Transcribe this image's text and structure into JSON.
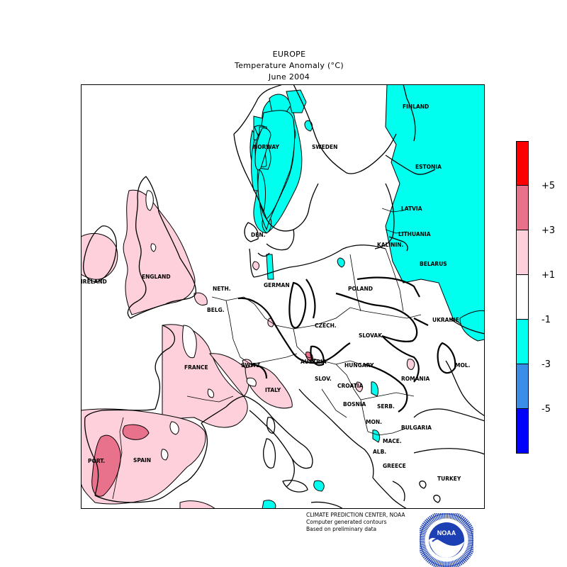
{
  "title": {
    "line1": "EUROPE",
    "line2": "Temperature Anomaly (°C)",
    "line3": "June 2004"
  },
  "countries": {
    "finland": "FINLAND",
    "norway": "NORWAY",
    "sweden": "SWEDEN",
    "estonia": "ESTONIA",
    "latvia": "LATVIA",
    "lithuania": "LITHUANIA",
    "kalinin": "KALININ.",
    "belarus": "BELARUS",
    "den": "DEN.",
    "ireland": "IRELAND",
    "england": "ENGLAND",
    "neth": "NETH.",
    "germany": "GERMAN",
    "poland": "POLAND",
    "belg": "BELG.",
    "ukraine": "UKRAINE",
    "czech": "CZECH.",
    "slovak": "SLOVAK.",
    "france": "FRANCE",
    "switz": "SWITZ.",
    "austria": "AUSTRIA",
    "hungary": "HUNGARY",
    "mol": "MOL.",
    "romania": "ROMANIA",
    "slov": "SLOV.",
    "croatia": "CROATIA",
    "italy": "ITALY",
    "bosnia": "BOSNIA",
    "serb": "SERB.",
    "mon": "MON.",
    "bulgaria": "BULGARIA",
    "mace": "MACE.",
    "alb": "ALB.",
    "greece": "GREECE",
    "turkey": "TURKEY",
    "port": "PORT.",
    "spain": "SPAIN"
  },
  "legend": {
    "levels": [
      "+5",
      "+3",
      "+1",
      "-1",
      "-3",
      "-5"
    ],
    "colors": [
      "#ff0000",
      "#e8728c",
      "#fdd0dc",
      "#ffffff",
      "#00ffee",
      "#3a8ee6",
      "#0000ff"
    ]
  },
  "credit": {
    "line1": "CLIMATE PREDICTION CENTER, NOAA",
    "line2": "Computer generated contours",
    "line3": "Based on preliminary data"
  },
  "logo": {
    "text": "NOAA",
    "ring_top": "NATIONAL OCEANIC AND ATMOSPHERIC ADMINISTRATION",
    "ring_bottom": "U.S. DEPARTMENT OF COMMERCE"
  },
  "colors": {
    "warm1": "#fdd0dc",
    "warm3": "#e8728c",
    "cool1": "#00ffee",
    "noaa_blue": "#1d3fb4"
  }
}
